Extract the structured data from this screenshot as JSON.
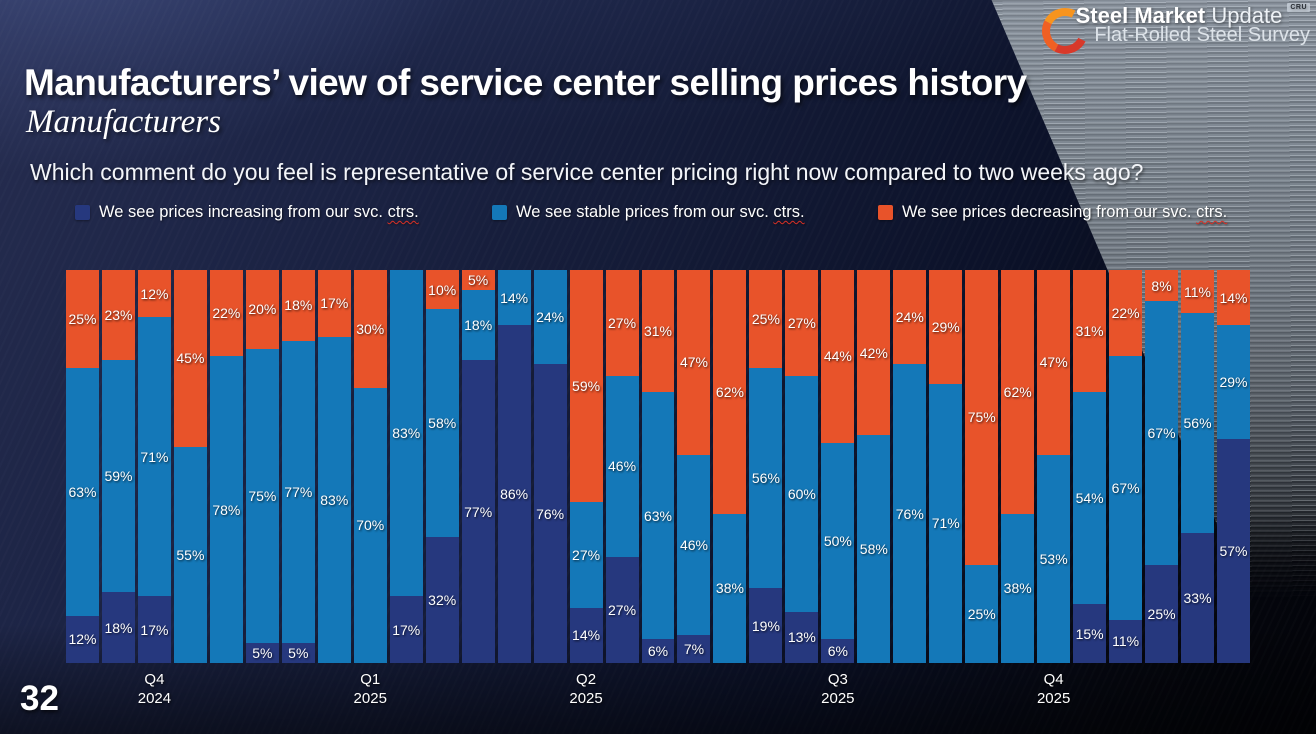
{
  "slide": {
    "page_number": "32",
    "title": "Manufacturers’ view of service center selling prices history",
    "subtitle": "Manufacturers",
    "question": "Which comment do you feel is representative of service center pricing right now compared to two weeks ago?"
  },
  "logo": {
    "brand_bold": "Steel Market",
    "brand_light": "Update",
    "badge": "CRU",
    "tagline": "Flat-Rolled Steel Survey",
    "swoosh_colors": [
      "#f7941e",
      "#f06023",
      "#d8392a"
    ]
  },
  "legend": [
    {
      "prefix": "We see prices increasing from our svc. ",
      "underlined_word": "ctrs.",
      "color": "#26387e",
      "series": "increasing"
    },
    {
      "prefix": "We see stable prices from our svc. ",
      "underlined_word": "ctrs.",
      "color": "#1478b8",
      "series": "stable"
    },
    {
      "prefix": "We see prices decreasing from our svc. ",
      "underlined_word": "ctrs.",
      "color": "#e8532a",
      "series": "decreasing"
    }
  ],
  "chart_data": {
    "type": "bar",
    "subtype": "stacked-100-percent",
    "title": "Manufacturers’ view of service center selling prices history",
    "unit": "%",
    "ylim": [
      0,
      100
    ],
    "grid": false,
    "legend_position": "top",
    "series_order_bottom_to_top": [
      "increasing",
      "stable",
      "decreasing"
    ],
    "colors": {
      "increasing": "#26387e",
      "stable": "#1478b8",
      "decreasing": "#e8532a"
    },
    "label_suffix": "%",
    "bars": [
      {
        "increasing": 12,
        "stable": 63,
        "decreasing": 25
      },
      {
        "increasing": 18,
        "stable": 59,
        "decreasing": 23
      },
      {
        "increasing": 17,
        "stable": 71,
        "decreasing": 12
      },
      {
        "increasing": 0,
        "stable": 55,
        "decreasing": 45
      },
      {
        "increasing": 0,
        "stable": 78,
        "decreasing": 22
      },
      {
        "increasing": 5,
        "stable": 75,
        "decreasing": 20
      },
      {
        "increasing": 5,
        "stable": 77,
        "decreasing": 18
      },
      {
        "increasing": 0,
        "stable": 83,
        "decreasing": 17
      },
      {
        "increasing": 0,
        "stable": 70,
        "decreasing": 30
      },
      {
        "increasing": 17,
        "stable": 83,
        "decreasing": 0
      },
      {
        "increasing": 32,
        "stable": 58,
        "decreasing": 10
      },
      {
        "increasing": 77,
        "stable": 18,
        "decreasing": 5
      },
      {
        "increasing": 86,
        "stable": 14,
        "decreasing": 0
      },
      {
        "increasing": 76,
        "stable": 24,
        "decreasing": 0
      },
      {
        "increasing": 14,
        "stable": 27,
        "decreasing": 59
      },
      {
        "increasing": 27,
        "stable": 46,
        "decreasing": 27
      },
      {
        "increasing": 6,
        "stable": 63,
        "decreasing": 31
      },
      {
        "increasing": 7,
        "stable": 46,
        "decreasing": 47
      },
      {
        "increasing": 0,
        "stable": 38,
        "decreasing": 62
      },
      {
        "increasing": 19,
        "stable": 56,
        "decreasing": 25
      },
      {
        "increasing": 13,
        "stable": 60,
        "decreasing": 27
      },
      {
        "increasing": 6,
        "stable": 50,
        "decreasing": 44
      },
      {
        "increasing": 0,
        "stable": 58,
        "decreasing": 42
      },
      {
        "increasing": 0,
        "stable": 76,
        "decreasing": 24
      },
      {
        "increasing": 0,
        "stable": 71,
        "decreasing": 29
      },
      {
        "increasing": 0,
        "stable": 25,
        "decreasing": 75
      },
      {
        "increasing": 0,
        "stable": 38,
        "decreasing": 62
      },
      {
        "increasing": 0,
        "stable": 53,
        "decreasing": 47
      },
      {
        "increasing": 15,
        "stable": 54,
        "decreasing": 31
      },
      {
        "increasing": 11,
        "stable": 67,
        "decreasing": 22
      },
      {
        "increasing": 25,
        "stable": 67,
        "decreasing": 8
      },
      {
        "increasing": 33,
        "stable": 56,
        "decreasing": 11
      },
      {
        "increasing": 57,
        "stable": 29,
        "decreasing": 14
      }
    ],
    "quarter_ticks": [
      {
        "quarter": "Q4",
        "year": "2024",
        "bar_index": 2
      },
      {
        "quarter": "Q1",
        "year": "2025",
        "bar_index": 8
      },
      {
        "quarter": "Q2",
        "year": "2025",
        "bar_index": 14
      },
      {
        "quarter": "Q3",
        "year": "2025",
        "bar_index": 21
      },
      {
        "quarter": "Q4",
        "year": "2025",
        "bar_index": 27
      }
    ]
  }
}
